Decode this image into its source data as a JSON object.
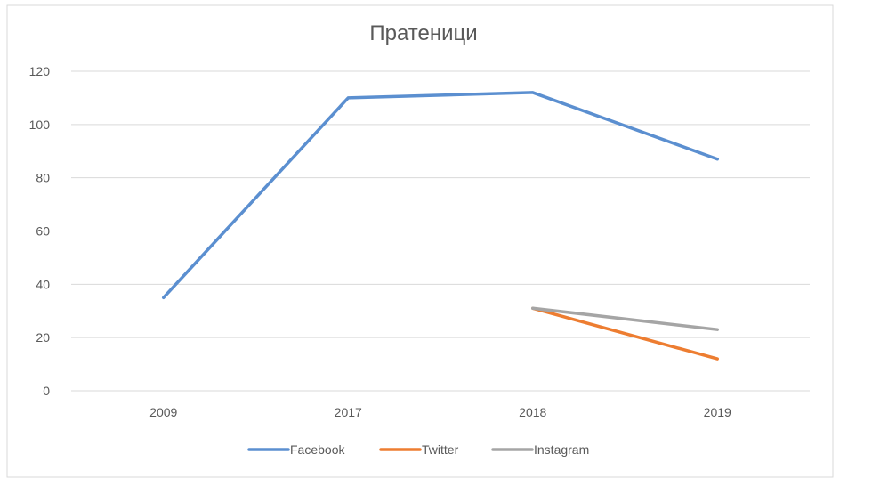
{
  "chart_data": {
    "type": "line",
    "title": "Пратеници",
    "categories": [
      "2009",
      "2017",
      "2018",
      "2019"
    ],
    "yticks": [
      "0",
      "20",
      "40",
      "60",
      "80",
      "100",
      "120"
    ],
    "ylim": [
      0,
      120
    ],
    "grid": true,
    "legend_position": "bottom",
    "series": [
      {
        "name": "Facebook",
        "color": "#5B8FD0",
        "values": [
          35,
          110,
          112,
          87
        ]
      },
      {
        "name": "Twitter",
        "color": "#ED7D31",
        "values": [
          null,
          null,
          31,
          12
        ]
      },
      {
        "name": "Instagram",
        "color": "#A5A5A5",
        "values": [
          null,
          null,
          31,
          23
        ]
      }
    ]
  }
}
